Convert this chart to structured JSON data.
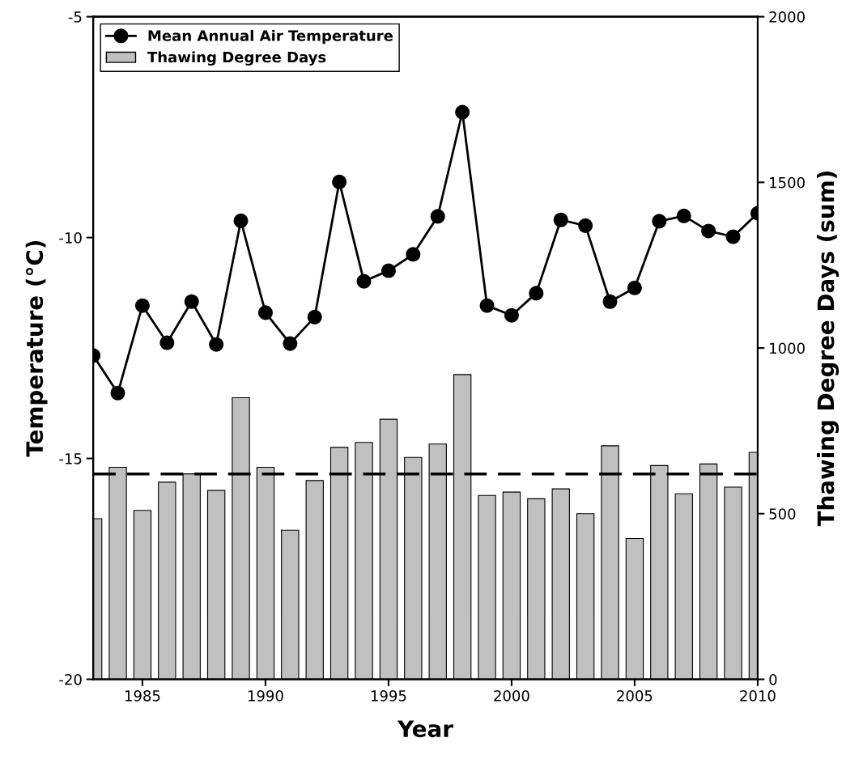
{
  "chart_data": {
    "type": "line",
    "xlabel": "Year",
    "ylabel": "Temperature (°C)",
    "y2label": "Thawing Degree Days (sum)",
    "x": [
      1983,
      1984,
      1985,
      1986,
      1987,
      1988,
      1989,
      1990,
      1991,
      1992,
      1993,
      1994,
      1995,
      1996,
      1997,
      1998,
      1999,
      2000,
      2001,
      2002,
      2003,
      2004,
      2005,
      2006,
      2007,
      2008,
      2009,
      2010
    ],
    "series": [
      {
        "name": "Mean Annual Air Temperature",
        "color": "#000000",
        "marker": "circle",
        "values": [
          -12.67,
          -13.52,
          -11.54,
          -12.38,
          -11.45,
          -12.42,
          -9.62,
          -11.7,
          -12.4,
          -11.8,
          -8.74,
          -10.99,
          -10.75,
          -10.38,
          -9.52,
          -7.16,
          -11.54,
          -11.76,
          -11.26,
          -9.6,
          -9.73,
          -11.45,
          -11.14,
          -9.63,
          -9.51,
          -9.85,
          -9.98,
          -9.45
        ]
      },
      {
        "name": "Thawing Degree Days",
        "type": "bar",
        "axis": "y2",
        "color": "#c0c0c0",
        "values": [
          485,
          640,
          510,
          595,
          620,
          570,
          850,
          640,
          450,
          600,
          700,
          715,
          785,
          670,
          710,
          920,
          555,
          565,
          545,
          575,
          500,
          705,
          425,
          645,
          560,
          650,
          580,
          685
        ]
      }
    ],
    "xlim": [
      1983,
      2010
    ],
    "xticks": [
      1985,
      1990,
      1995,
      2000,
      2005,
      2010
    ],
    "ylim": [
      -20,
      -5
    ],
    "yticks": [
      -20,
      -15,
      -10,
      -5
    ],
    "y2lim": [
      0,
      2000
    ],
    "y2ticks": [
      0,
      500,
      1000,
      1500,
      2000
    ],
    "ref_lines": [
      {
        "axis": "y2",
        "value": 620,
        "color": "#000000",
        "line_style": "dashed"
      }
    ],
    "legend": "top left",
    "grid": false
  }
}
